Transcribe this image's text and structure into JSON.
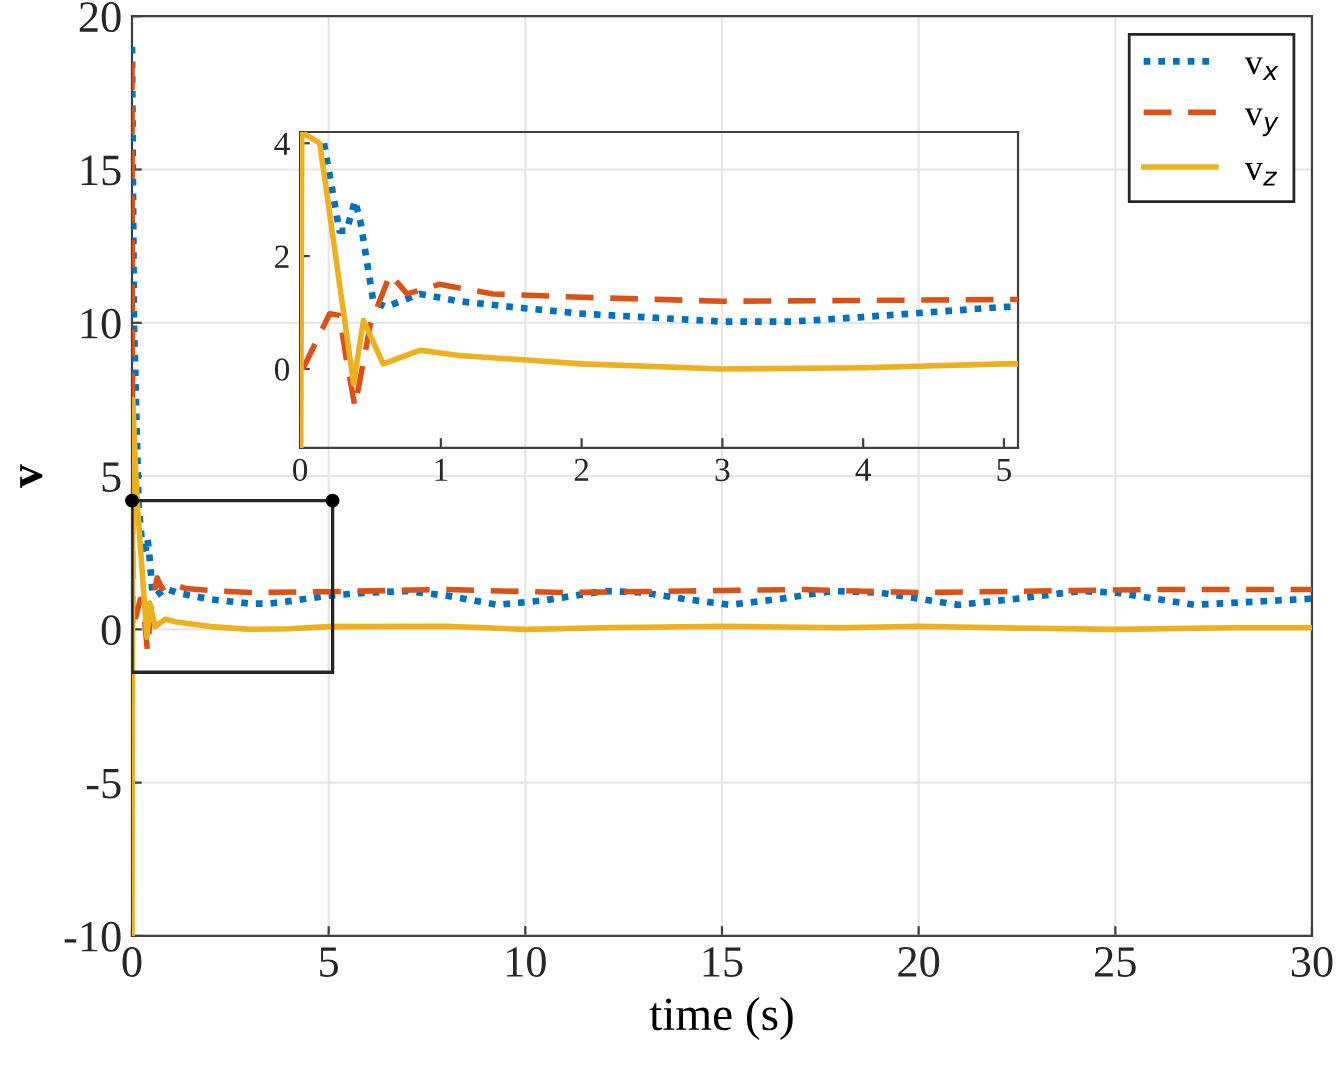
{
  "chart_data": [
    {
      "type": "line",
      "xlabel": "time (s)",
      "ylabel": "v",
      "xlim": [
        0,
        30
      ],
      "ylim": [
        -10,
        20
      ],
      "xticks": [
        0,
        5,
        10,
        15,
        20,
        25,
        30
      ],
      "yticks": [
        -10,
        -5,
        0,
        5,
        10,
        15,
        20
      ],
      "grid": true,
      "legend": "top right",
      "series": [
        {
          "name": "v$_{x}$",
          "color": "#0072bd",
          "line_style": "dotted",
          "x": [
            0,
            0.05,
            0.17,
            0.28,
            0.33,
            0.39,
            0.43,
            0.52,
            0.61,
            0.85,
            1.13,
            1.5,
            2,
            3,
            3.5,
            4,
            5,
            6,
            7,
            8,
            9.3,
            10.5,
            12,
            13,
            14,
            15.2,
            16.5,
            17.8,
            19,
            20,
            21,
            22.5,
            24.1,
            25,
            26,
            27,
            28.5,
            30
          ],
          "values": [
            19,
            10,
            4.0,
            2.45,
            2.45,
            2.98,
            2.6,
            1.2,
            1.1,
            1.33,
            1.2,
            1.1,
            0.98,
            0.84,
            0.84,
            0.92,
            1.1,
            1.2,
            1.25,
            1.1,
            0.8,
            0.95,
            1.25,
            1.2,
            1.0,
            0.8,
            1.0,
            1.25,
            1.2,
            1.0,
            0.8,
            1.0,
            1.25,
            1.2,
            1.0,
            0.8,
            0.9,
            1.0
          ]
        },
        {
          "name": "v$_{y}$",
          "color": "#d95319",
          "line_style": "dashed",
          "x": [
            0,
            0.01,
            0.02,
            0.21,
            0.28,
            0.33,
            0.39,
            0.5,
            0.64,
            0.76,
            0.99,
            1.37,
            2,
            3,
            5,
            8,
            11,
            14,
            17,
            20,
            23,
            26,
            29,
            30
          ],
          "values": [
            18.5,
            8,
            0,
            0.98,
            0.95,
            0.15,
            -0.67,
            0.8,
            1.68,
            1.33,
            1.5,
            1.33,
            1.27,
            1.2,
            1.23,
            1.3,
            1.2,
            1.25,
            1.3,
            1.2,
            1.25,
            1.3,
            1.3,
            1.3
          ]
        },
        {
          "name": "v$_{z}$",
          "color": "#edb120",
          "line_style": "solid",
          "x": [
            0,
            0.02,
            0.08,
            0.14,
            0.38,
            0.45,
            0.59,
            0.85,
            1.13,
            2,
            3,
            4,
            5,
            8,
            10,
            12,
            15,
            18,
            20,
            22,
            25,
            28,
            30
          ],
          "values": [
            -10,
            7.5,
            5.5,
            4.0,
            -0.26,
            0.86,
            0.09,
            0.33,
            0.24,
            0.09,
            0.0,
            0.02,
            0.09,
            0.1,
            0.0,
            0.05,
            0.1,
            0.05,
            0.1,
            0.05,
            0.0,
            0.05,
            0.05
          ]
        }
      ]
    },
    {
      "type": "line",
      "xlim": [
        0,
        5.1
      ],
      "ylim": [
        -1.4,
        4.2
      ],
      "xticks": [
        0,
        1,
        2,
        3,
        4,
        5
      ],
      "yticks": [
        0,
        2,
        4
      ],
      "series": [
        {
          "color": "#0072bd",
          "line_style": "dotted",
          "x": [
            0.17,
            0.28,
            0.33,
            0.39,
            0.43,
            0.52,
            0.61,
            0.85,
            1.13,
            1.5,
            2,
            3,
            3.5,
            4,
            5,
            5.1
          ],
          "values": [
            4.0,
            2.45,
            2.45,
            2.98,
            2.6,
            1.2,
            1.1,
            1.33,
            1.2,
            1.1,
            0.98,
            0.84,
            0.84,
            0.92,
            1.1,
            1.1
          ]
        },
        {
          "color": "#d95319",
          "line_style": "dashed",
          "x": [
            0.02,
            0.21,
            0.28,
            0.33,
            0.39,
            0.5,
            0.64,
            0.76,
            0.99,
            1.37,
            2,
            3,
            5,
            5.1
          ],
          "values": [
            0,
            0.98,
            0.95,
            0.15,
            -0.67,
            0.8,
            1.68,
            1.33,
            1.5,
            1.33,
            1.27,
            1.2,
            1.23,
            1.23
          ]
        },
        {
          "color": "#edb120",
          "line_style": "solid",
          "x": [
            0.005,
            0.012,
            0.14,
            0.38,
            0.45,
            0.59,
            0.85,
            1.13,
            2,
            3,
            4,
            5,
            5.1
          ],
          "values": [
            -1.4,
            4.2,
            4.0,
            -0.26,
            0.86,
            0.09,
            0.33,
            0.24,
            0.09,
            0.0,
            0.02,
            0.09,
            0.09
          ]
        }
      ]
    }
  ]
}
